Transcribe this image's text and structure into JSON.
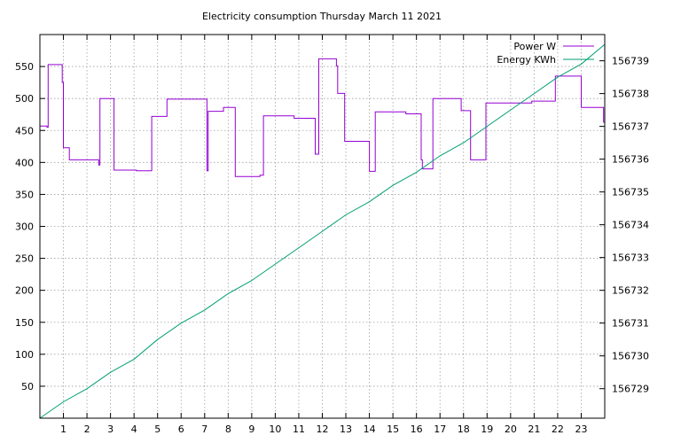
{
  "chart_data": {
    "type": "line",
    "title": "Electricity consumption Thursday March 11 2021",
    "xlabel": "",
    "ylabel": "",
    "y2label": "",
    "grid": true,
    "legend_position": "top-right",
    "x_ticks": [
      "1",
      "2",
      "3",
      "4",
      "5",
      "6",
      "7",
      "8",
      "9",
      "10",
      "11",
      "12",
      "13",
      "14",
      "15",
      "16",
      "17",
      "18",
      "19",
      "20",
      "21",
      "22",
      "23"
    ],
    "y_ticks": [
      "50",
      "100",
      "150",
      "200",
      "250",
      "300",
      "350",
      "400",
      "450",
      "500",
      "550"
    ],
    "y2_ticks": [
      "156729",
      "156730",
      "156731",
      "156732",
      "156733",
      "156734",
      "156735",
      "156736",
      "156737",
      "156738",
      "156739"
    ],
    "xlim": [
      0,
      24
    ],
    "ylim": [
      0,
      600
    ],
    "y2lim": [
      156728.1,
      156739.8
    ],
    "series": [
      {
        "name": "Power W",
        "axis": "left",
        "color": "#9400d3",
        "step": true,
        "x": [
          0,
          0.3,
          0.35,
          0.95,
          1.0,
          1.05,
          1.25,
          2.5,
          2.55,
          3.15,
          3.7,
          4.1,
          4.75,
          5.4,
          7.1,
          7.15,
          7.8,
          8.3,
          9.35,
          9.5,
          10.8,
          11.7,
          11.85,
          12.6,
          12.65,
          12.95,
          14.0,
          14.25,
          15.55,
          16.2,
          16.25,
          16.7,
          17.9,
          18.3,
          18.95,
          20.9,
          21.9,
          23.0,
          23.95
        ],
        "y": [
          457,
          455,
          553,
          525,
          423,
          423,
          404,
          396,
          500,
          388,
          388,
          387,
          472,
          499,
          387,
          480,
          486,
          378,
          380,
          473,
          469,
          413,
          562,
          551,
          508,
          433,
          386,
          479,
          476,
          404,
          390,
          500,
          481,
          404,
          493,
          496,
          535,
          486,
          463
        ]
      },
      {
        "name": "Energy KWh",
        "axis": "right",
        "color": "#009e73",
        "step": false,
        "x": [
          0,
          1,
          2,
          3,
          4,
          5,
          6,
          7,
          8,
          9,
          10,
          11,
          12,
          13,
          14,
          15,
          16,
          17,
          18,
          19,
          20,
          21,
          22,
          23,
          24
        ],
        "y": [
          156728.1,
          156728.6,
          156729.0,
          156729.5,
          156729.9,
          156730.5,
          156731.0,
          156731.4,
          156731.9,
          156732.3,
          156732.8,
          156733.3,
          156733.8,
          156734.3,
          156734.7,
          156735.2,
          156735.6,
          156736.1,
          156736.5,
          156737.0,
          156737.5,
          156738.0,
          156738.5,
          156738.9,
          156739.5
        ]
      }
    ]
  }
}
